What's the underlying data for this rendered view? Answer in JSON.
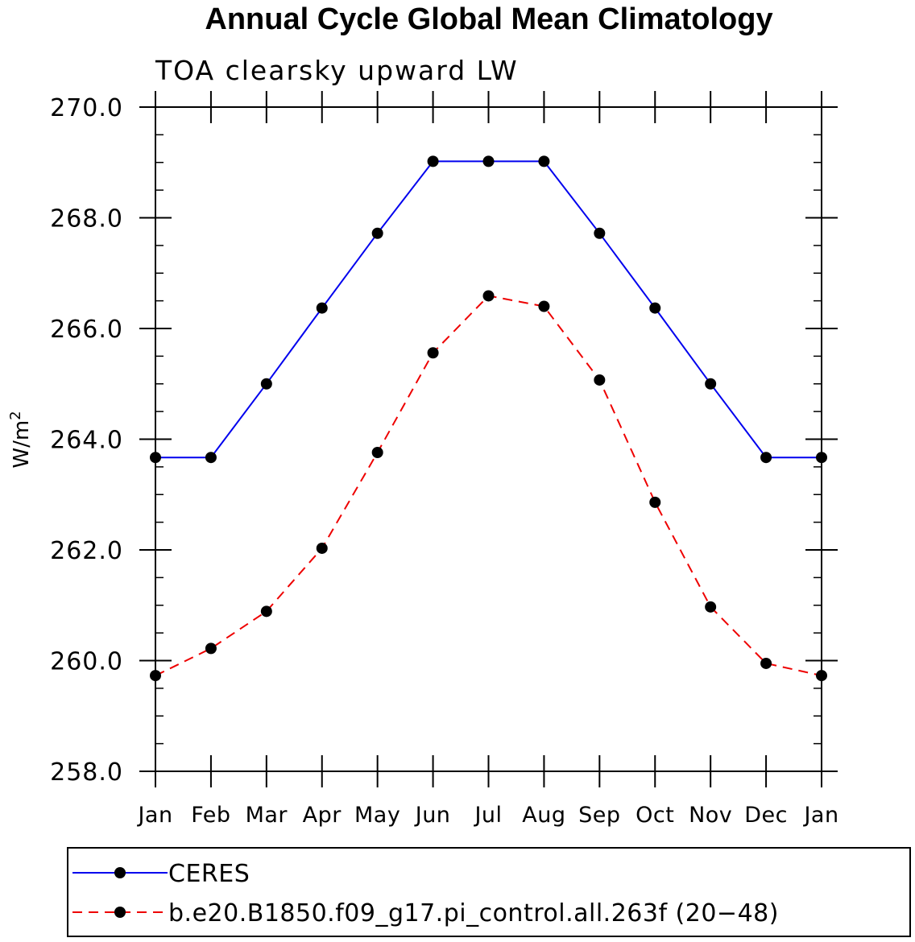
{
  "chart_data": {
    "type": "line",
    "title": "Annual Cycle Global Mean Climatology",
    "subtitle": "TOA clearsky upward LW",
    "ylabel_base": "W/m",
    "ylabel_sup": "2",
    "xlabel": "",
    "categories": [
      "Jan",
      "Feb",
      "Mar",
      "Apr",
      "May",
      "Jun",
      "Jul",
      "Aug",
      "Sep",
      "Oct",
      "Nov",
      "Dec",
      "Jan"
    ],
    "ylim": [
      258.0,
      270.0
    ],
    "yticks": [
      "258.0",
      "260.0",
      "262.0",
      "264.0",
      "266.0",
      "268.0",
      "270.0"
    ],
    "grid": false,
    "legend_position": "bottom",
    "series": [
      {
        "name": "CERES",
        "color": "#0000ee",
        "dash": "solid",
        "marker_color": "#000000",
        "values": [
          263.67,
          263.67,
          265.0,
          266.37,
          267.72,
          269.02,
          269.02,
          269.02,
          267.72,
          266.37,
          265.0,
          263.67,
          263.67
        ]
      },
      {
        "name": "b.e20.B1850.f09_g17.pi_control.all.263f (20−48)",
        "color": "#ee0000",
        "dash": "dashed",
        "marker_color": "#000000",
        "values": [
          259.73,
          260.22,
          260.89,
          262.03,
          263.76,
          265.56,
          266.59,
          266.4,
          265.07,
          262.86,
          260.97,
          259.95,
          259.73
        ]
      }
    ]
  }
}
